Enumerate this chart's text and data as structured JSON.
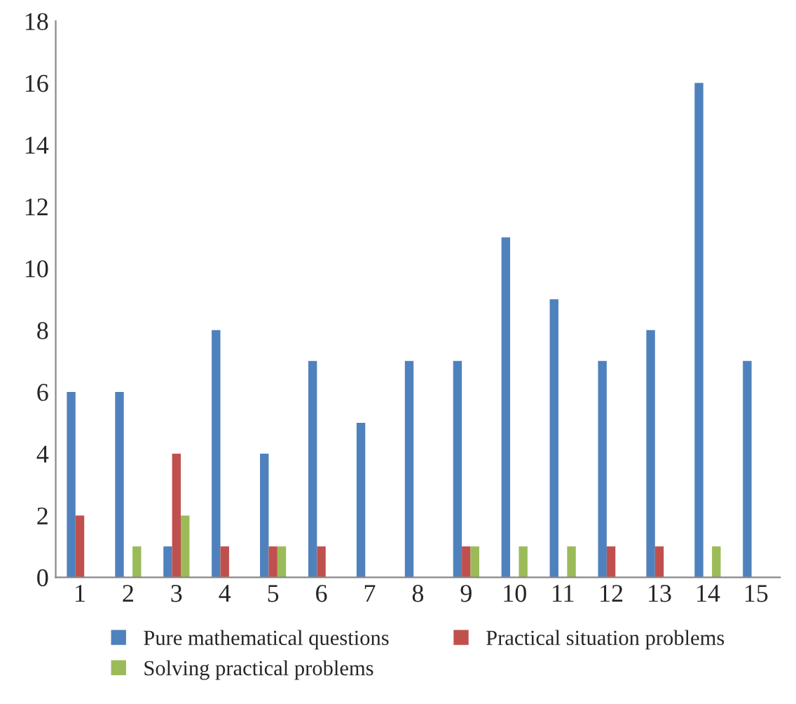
{
  "chart_data": {
    "type": "bar",
    "categories": [
      "1",
      "2",
      "3",
      "4",
      "5",
      "6",
      "7",
      "8",
      "9",
      "10",
      "11",
      "12",
      "13",
      "14",
      "15"
    ],
    "series": [
      {
        "name": "Pure mathematical questions",
        "color": "#4f81bd",
        "values": [
          6,
          6,
          1,
          8,
          4,
          7,
          5,
          7,
          7,
          11,
          9,
          7,
          8,
          16,
          7
        ]
      },
      {
        "name": "Practical situation problems",
        "color": "#c0504d",
        "values": [
          2,
          0,
          4,
          1,
          1,
          1,
          0,
          0,
          1,
          0,
          0,
          1,
          1,
          0,
          0
        ]
      },
      {
        "name": "Solving practical problems",
        "color": "#9bbb59",
        "values": [
          0,
          1,
          2,
          0,
          1,
          0,
          0,
          0,
          1,
          1,
          1,
          0,
          0,
          1,
          0
        ]
      }
    ],
    "ylim": [
      0,
      18
    ],
    "yticks": [
      0,
      2,
      4,
      6,
      8,
      10,
      12,
      14,
      16,
      18
    ],
    "grid": false,
    "legend": "bottom"
  }
}
